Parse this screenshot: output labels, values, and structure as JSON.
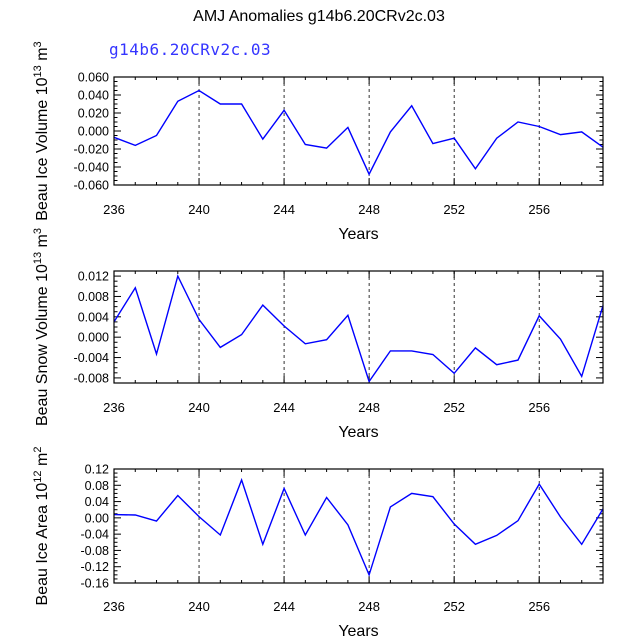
{
  "figure": {
    "title": "AMJ Anomalies g14b6.20CRv2c.03",
    "subtitle": "g14b6.20CRv2c.03",
    "line_color": "#0000ff",
    "subtitle_color": "#3535ff"
  },
  "chart_data": [
    {
      "type": "line",
      "name": "ice-volume",
      "ylabel_main": "Beau Ice Volume 10",
      "ylabel_exp": "13",
      "ylabel_unit": " m",
      "ylabel_unit_exp": "3",
      "xlabel": "Years",
      "xlim": [
        236,
        259
      ],
      "ylim": [
        -0.06,
        0.06
      ],
      "xticks": [
        236,
        240,
        244,
        248,
        252,
        256
      ],
      "yticks": [
        "0.060",
        "0.040",
        "0.020",
        "0.000",
        "-0.020",
        "-0.040",
        "-0.060"
      ],
      "ytick_values": [
        0.06,
        0.04,
        0.02,
        0.0,
        -0.02,
        -0.04,
        -0.06
      ],
      "dashed_x": [
        240,
        244,
        248,
        252,
        256
      ],
      "x": [
        236,
        237,
        238,
        239,
        240,
        241,
        242,
        243,
        244,
        245,
        246,
        247,
        248,
        249,
        250,
        251,
        252,
        253,
        254,
        255,
        256,
        257,
        258,
        259
      ],
      "values": [
        -0.007,
        -0.016,
        -0.005,
        0.033,
        0.045,
        0.03,
        0.03,
        -0.009,
        0.023,
        -0.015,
        -0.019,
        0.004,
        -0.048,
        -0.001,
        0.028,
        -0.014,
        -0.008,
        -0.042,
        -0.008,
        0.01,
        0.005,
        -0.004,
        -0.001,
        -0.018
      ]
    },
    {
      "type": "line",
      "name": "snow-volume",
      "ylabel_main": "Beau Snow Volume 10",
      "ylabel_exp": "13",
      "ylabel_unit": " m",
      "ylabel_unit_exp": "3",
      "xlabel": "Years",
      "xlim": [
        236,
        259
      ],
      "ylim": [
        -0.009,
        0.013
      ],
      "xticks": [
        236,
        240,
        244,
        248,
        252,
        256
      ],
      "yticks": [
        "0.012",
        "0.008",
        "0.004",
        "0.000",
        "-0.004",
        "-0.008"
      ],
      "ytick_values": [
        0.012,
        0.008,
        0.004,
        0.0,
        -0.004,
        -0.008
      ],
      "dashed_x": [
        240,
        244,
        248,
        252,
        256
      ],
      "x": [
        236,
        237,
        238,
        239,
        240,
        241,
        242,
        243,
        244,
        245,
        246,
        247,
        248,
        249,
        250,
        251,
        252,
        253,
        254,
        255,
        256,
        257,
        258,
        259
      ],
      "values": [
        0.003,
        0.0097,
        -0.0033,
        0.012,
        0.0035,
        -0.002,
        0.0005,
        0.0063,
        0.0022,
        -0.0013,
        -0.0005,
        0.0043,
        -0.0087,
        -0.0027,
        -0.0027,
        -0.0034,
        -0.0071,
        -0.0021,
        -0.0054,
        -0.0045,
        0.0042,
        -0.0004,
        -0.0077,
        0.0062
      ]
    },
    {
      "type": "line",
      "name": "ice-area",
      "ylabel_main": "Beau Ice Area 10",
      "ylabel_exp": "12",
      "ylabel_unit": " m",
      "ylabel_unit_exp": "2",
      "xlabel": "Years",
      "xlim": [
        236,
        259
      ],
      "ylim": [
        -0.16,
        0.12
      ],
      "xticks": [
        236,
        240,
        244,
        248,
        252,
        256
      ],
      "yticks": [
        "0.12",
        "0.08",
        "0.04",
        "0.00",
        "-0.04",
        "-0.08",
        "-0.12",
        "-0.16"
      ],
      "ytick_values": [
        0.12,
        0.08,
        0.04,
        0.0,
        -0.04,
        -0.08,
        -0.12,
        -0.16
      ],
      "dashed_x": [
        240,
        244,
        248,
        252,
        256
      ],
      "x": [
        236,
        237,
        238,
        239,
        240,
        241,
        242,
        243,
        244,
        245,
        246,
        247,
        248,
        249,
        250,
        251,
        252,
        253,
        254,
        255,
        256,
        257,
        258,
        259
      ],
      "values": [
        0.008,
        0.007,
        -0.008,
        0.055,
        0.003,
        -0.042,
        0.093,
        -0.065,
        0.072,
        -0.042,
        0.05,
        -0.017,
        -0.14,
        0.027,
        0.06,
        0.052,
        -0.015,
        -0.065,
        -0.043,
        -0.007,
        0.083,
        0.002,
        -0.065,
        0.022
      ]
    }
  ]
}
